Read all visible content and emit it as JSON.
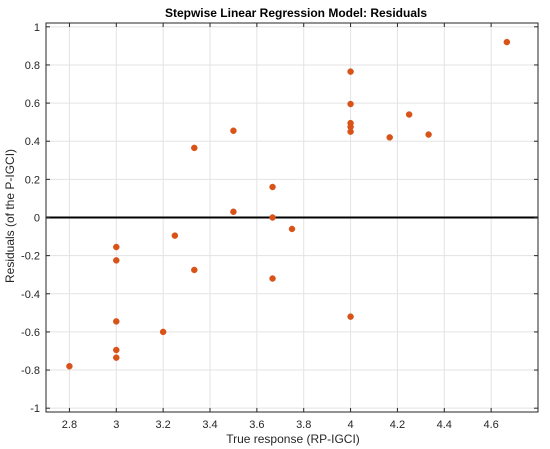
{
  "chart_data": {
    "type": "scatter",
    "title": "Stepwise Linear Regression Model: Residuals",
    "xlabel": "True response (RP-IGCI)",
    "ylabel": "Residuals (of the P-IGCI)",
    "xlim": [
      2.7,
      4.8
    ],
    "ylim": [
      -1.02,
      1.02
    ],
    "xticks": [
      2.8,
      3,
      3.2,
      3.4,
      3.6,
      3.8,
      4,
      4.2,
      4.4,
      4.6
    ],
    "xtick_labels": [
      "2.8",
      "3",
      "3.2",
      "3.4",
      "3.6",
      "3.8",
      "4",
      "4.2",
      "4.4",
      "4.6"
    ],
    "yticks": [
      -1,
      -0.8,
      -0.6,
      -0.4,
      -0.2,
      0,
      0.2,
      0.4,
      0.6,
      0.8,
      1
    ],
    "ytick_labels": [
      "-1",
      "-0.8",
      "-0.6",
      "-0.4",
      "-0.2",
      "0",
      "0.2",
      "0.4",
      "0.6",
      "0.8",
      "1"
    ],
    "grid": true,
    "reference_line_y": 0,
    "marker_color": "#d95319",
    "points": [
      {
        "x": 2.8,
        "y": -0.78
      },
      {
        "x": 3.0,
        "y": -0.155
      },
      {
        "x": 3.0,
        "y": -0.225
      },
      {
        "x": 3.0,
        "y": -0.545
      },
      {
        "x": 3.0,
        "y": -0.695
      },
      {
        "x": 3.0,
        "y": -0.735
      },
      {
        "x": 3.2,
        "y": -0.6
      },
      {
        "x": 3.25,
        "y": -0.095
      },
      {
        "x": 3.333,
        "y": 0.365
      },
      {
        "x": 3.333,
        "y": -0.275
      },
      {
        "x": 3.5,
        "y": 0.455
      },
      {
        "x": 3.5,
        "y": 0.03
      },
      {
        "x": 3.667,
        "y": 0.16
      },
      {
        "x": 3.667,
        "y": 0.0
      },
      {
        "x": 3.667,
        "y": -0.32
      },
      {
        "x": 3.75,
        "y": -0.06
      },
      {
        "x": 4.0,
        "y": 0.765
      },
      {
        "x": 4.0,
        "y": 0.595
      },
      {
        "x": 4.0,
        "y": 0.495
      },
      {
        "x": 4.0,
        "y": 0.475
      },
      {
        "x": 4.0,
        "y": 0.45
      },
      {
        "x": 4.0,
        "y": -0.52
      },
      {
        "x": 4.167,
        "y": 0.42
      },
      {
        "x": 4.25,
        "y": 0.54
      },
      {
        "x": 4.333,
        "y": 0.435
      },
      {
        "x": 4.667,
        "y": 0.92
      }
    ]
  }
}
